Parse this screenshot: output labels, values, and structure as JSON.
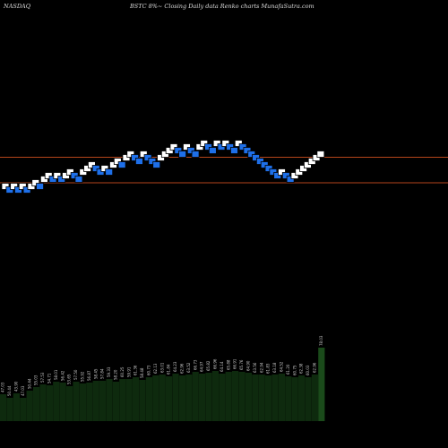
{
  "header": {
    "exchange": "NASDAQ",
    "description": "BSTC 8%~  Closing Daily data  Renko  charts MunafaSutra.com"
  },
  "colors": {
    "background": "#000000",
    "up_brick": "#ffffff",
    "down_brick": "#1e6fe8",
    "brick_border": "#000000",
    "level_line": "#b5451b",
    "volume": "#0e2a0e",
    "volume_last": "#1a4a1a"
  },
  "chart_data": [
    {
      "type": "renko",
      "y_range": [
        0,
        500
      ],
      "levels": [
        175.5,
        204
      ],
      "bricks": [
        {
          "x": 0,
          "y": 208,
          "dir": "up"
        },
        {
          "x": 1,
          "y": 212,
          "dir": "down"
        },
        {
          "x": 2,
          "y": 208,
          "dir": "up"
        },
        {
          "x": 3,
          "y": 212,
          "dir": "down"
        },
        {
          "x": 4,
          "y": 208,
          "dir": "up"
        },
        {
          "x": 5,
          "y": 212,
          "dir": "down"
        },
        {
          "x": 6,
          "y": 208,
          "dir": "up"
        },
        {
          "x": 7,
          "y": 204,
          "dir": "up"
        },
        {
          "x": 8,
          "y": 208,
          "dir": "down"
        },
        {
          "x": 9,
          "y": 200,
          "dir": "up"
        },
        {
          "x": 10,
          "y": 196,
          "dir": "up"
        },
        {
          "x": 11,
          "y": 200,
          "dir": "down"
        },
        {
          "x": 12,
          "y": 196,
          "dir": "up"
        },
        {
          "x": 13,
          "y": 200,
          "dir": "down"
        },
        {
          "x": 14,
          "y": 196,
          "dir": "up"
        },
        {
          "x": 15,
          "y": 192,
          "dir": "up"
        },
        {
          "x": 16,
          "y": 196,
          "dir": "down"
        },
        {
          "x": 17,
          "y": 200,
          "dir": "down"
        },
        {
          "x": 18,
          "y": 192,
          "dir": "up"
        },
        {
          "x": 19,
          "y": 188,
          "dir": "up"
        },
        {
          "x": 20,
          "y": 184,
          "dir": "up"
        },
        {
          "x": 21,
          "y": 188,
          "dir": "down"
        },
        {
          "x": 22,
          "y": 192,
          "dir": "down"
        },
        {
          "x": 23,
          "y": 188,
          "dir": "up"
        },
        {
          "x": 24,
          "y": 192,
          "dir": "down"
        },
        {
          "x": 25,
          "y": 184,
          "dir": "up"
        },
        {
          "x": 26,
          "y": 180,
          "dir": "up"
        },
        {
          "x": 27,
          "y": 184,
          "dir": "down"
        },
        {
          "x": 28,
          "y": 176,
          "dir": "up"
        },
        {
          "x": 29,
          "y": 172,
          "dir": "up"
        },
        {
          "x": 30,
          "y": 176,
          "dir": "down"
        },
        {
          "x": 31,
          "y": 180,
          "dir": "down"
        },
        {
          "x": 32,
          "y": 172,
          "dir": "up"
        },
        {
          "x": 33,
          "y": 176,
          "dir": "down"
        },
        {
          "x": 34,
          "y": 180,
          "dir": "down"
        },
        {
          "x": 35,
          "y": 184,
          "dir": "down"
        },
        {
          "x": 36,
          "y": 176,
          "dir": "up"
        },
        {
          "x": 37,
          "y": 172,
          "dir": "up"
        },
        {
          "x": 38,
          "y": 168,
          "dir": "up"
        },
        {
          "x": 39,
          "y": 164,
          "dir": "up"
        },
        {
          "x": 40,
          "y": 168,
          "dir": "down"
        },
        {
          "x": 41,
          "y": 172,
          "dir": "down"
        },
        {
          "x": 42,
          "y": 164,
          "dir": "up"
        },
        {
          "x": 43,
          "y": 168,
          "dir": "down"
        },
        {
          "x": 44,
          "y": 172,
          "dir": "down"
        },
        {
          "x": 45,
          "y": 164,
          "dir": "up"
        },
        {
          "x": 46,
          "y": 160,
          "dir": "up"
        },
        {
          "x": 47,
          "y": 164,
          "dir": "down"
        },
        {
          "x": 48,
          "y": 168,
          "dir": "down"
        },
        {
          "x": 49,
          "y": 160,
          "dir": "up"
        },
        {
          "x": 50,
          "y": 164,
          "dir": "down"
        },
        {
          "x": 51,
          "y": 160,
          "dir": "up"
        },
        {
          "x": 52,
          "y": 164,
          "dir": "down"
        },
        {
          "x": 53,
          "y": 168,
          "dir": "down"
        },
        {
          "x": 54,
          "y": 160,
          "dir": "up"
        },
        {
          "x": 55,
          "y": 164,
          "dir": "down"
        },
        {
          "x": 56,
          "y": 168,
          "dir": "down"
        },
        {
          "x": 57,
          "y": 172,
          "dir": "down"
        },
        {
          "x": 58,
          "y": 176,
          "dir": "down"
        },
        {
          "x": 59,
          "y": 180,
          "dir": "down"
        },
        {
          "x": 60,
          "y": 184,
          "dir": "down"
        },
        {
          "x": 61,
          "y": 188,
          "dir": "down"
        },
        {
          "x": 62,
          "y": 192,
          "dir": "down"
        },
        {
          "x": 63,
          "y": 196,
          "dir": "down"
        },
        {
          "x": 64,
          "y": 192,
          "dir": "up"
        },
        {
          "x": 65,
          "y": 196,
          "dir": "down"
        },
        {
          "x": 66,
          "y": 200,
          "dir": "down"
        },
        {
          "x": 67,
          "y": 196,
          "dir": "up"
        },
        {
          "x": 68,
          "y": 192,
          "dir": "up"
        },
        {
          "x": 69,
          "y": 188,
          "dir": "up"
        },
        {
          "x": 70,
          "y": 184,
          "dir": "up"
        },
        {
          "x": 71,
          "y": 180,
          "dir": "up"
        },
        {
          "x": 72,
          "y": 176,
          "dir": "up"
        },
        {
          "x": 73,
          "y": 172,
          "dir": "up"
        }
      ]
    },
    {
      "type": "bar",
      "labels": [
        "47.03",
        "50.44",
        "43.90",
        "47.03",
        "50.44",
        "55.03",
        "57.53",
        "54.71",
        "58.01",
        "56.42",
        "53.65",
        "57.50",
        "55.92",
        "56.87",
        "58.45",
        "57.84",
        "59.33",
        "58.20",
        "60.25",
        "59.91",
        "61.36",
        "58.48",
        "60.73",
        "62.13",
        "63.01",
        "61.84",
        "64.23",
        "62.96",
        "63.52",
        "66.73",
        "64.97",
        "65.82",
        "66.96",
        "64.14",
        "65.88",
        "66.91",
        "65.76",
        "64.90",
        "63.56",
        "62.94",
        "61.83",
        "63.18",
        "64.52",
        "61.20",
        "60.75",
        "62.38",
        "60.03",
        "62.96",
        "78.03"
      ],
      "values": [
        30,
        26,
        31,
        26,
        34,
        38,
        41,
        40,
        44,
        43,
        39,
        44,
        42,
        43,
        45,
        45,
        47,
        44,
        47,
        47,
        49,
        46,
        49,
        51,
        52,
        50,
        53,
        51,
        52,
        55,
        53,
        54,
        56,
        53,
        55,
        56,
        55,
        54,
        52,
        52,
        51,
        52,
        53,
        50,
        49,
        51,
        49,
        52,
        82
      ],
      "ylim": [
        0,
        90
      ]
    }
  ]
}
